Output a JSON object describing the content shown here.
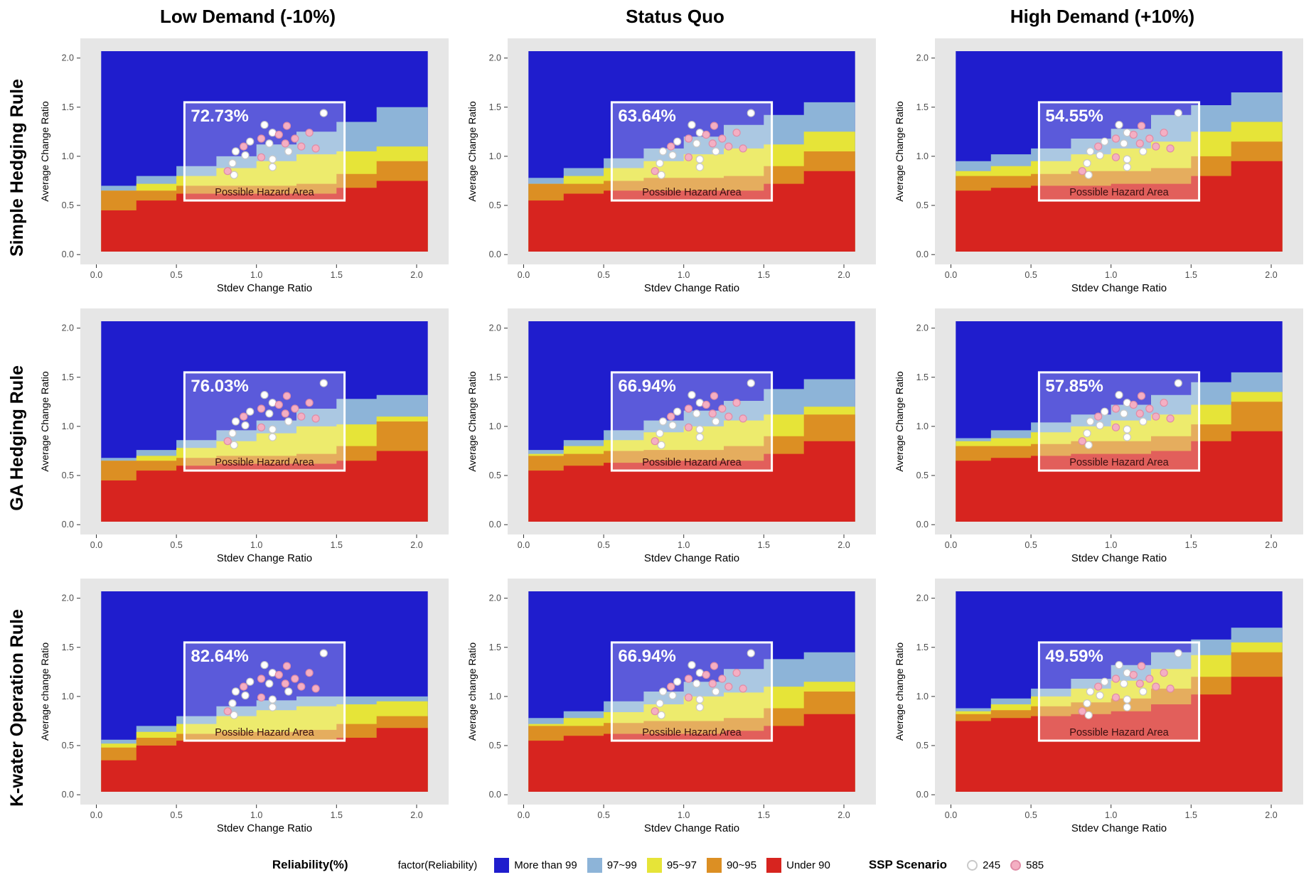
{
  "layout": {
    "col_titles": [
      "Low Demand (-10%)",
      "Status Quo",
      "High Demand (+10%)"
    ],
    "row_titles": [
      "Simple Hedging Rule",
      "GA Hedging Rule",
      "K-water Operation Rule"
    ]
  },
  "axes": {
    "xlabel": "Stdev Change Ratio",
    "ylabels": [
      "Average Change Ratio",
      "Average Change Ratio",
      "Average change Ratio"
    ],
    "tick_values": [
      0.0,
      0.5,
      1.0,
      1.5,
      2.0
    ],
    "domain": [
      -0.1,
      2.2
    ]
  },
  "colors": {
    "blue": "#1f1dcd",
    "lightblue": "#8db4d8",
    "yellow": "#e6e438",
    "orange": "#dc8f23",
    "red": "#d7241f",
    "panel_bg": "#e6e6e6",
    "ssp245": "#ffffff",
    "ssp245_stroke": "#c9c9c9",
    "ssp585": "#f4afc3",
    "ssp585_stroke": "#e08ca6",
    "hazard_text": "#3a1010",
    "overlay": "rgba(255,255,255,0.27)",
    "tick_text": "#4d4d4d",
    "tick_mark": "#333333"
  },
  "legend": {
    "title": "Reliability(%)",
    "factor_label": "factor(Reliability)",
    "classes": [
      {
        "label": "More than 99",
        "color_key": "blue"
      },
      {
        "label": "97~99",
        "color_key": "lightblue"
      },
      {
        "label": "95~97",
        "color_key": "yellow"
      },
      {
        "label": "90~95",
        "color_key": "orange"
      },
      {
        "label": "Under 90",
        "color_key": "red"
      }
    ],
    "ssp_title": "SSP Scenario",
    "ssp": [
      {
        "label": "245",
        "color_key": "ssp245"
      },
      {
        "label": "585",
        "color_key": "ssp585"
      }
    ]
  },
  "chart_data": {
    "type": "heatmap",
    "description": "Reliability class maps (Average Change Ratio vs Stdev Change Ratio) for 3 operation rules under 3 demand scenarios; white box marks Possible Hazard Area with % of scenarios above 99% reliability; dots are SSP245/SSP585 climate scenarios.",
    "band_x": [
      0.03,
      0.25,
      0.5,
      0.75,
      1.0,
      1.25,
      1.5,
      1.75,
      2.07
    ],
    "fill_range": [
      0.03,
      2.07
    ],
    "hazard_box": {
      "x0": 0.55,
      "y0": 0.55,
      "x1": 1.55,
      "y1": 1.55
    },
    "hazard_label": "Possible Hazard Area",
    "panels": [
      {
        "row": "Simple Hedging Rule",
        "col": "Low Demand (-10%)",
        "label": "72.73%",
        "bands": {
          "red": [
            0.45,
            0.55,
            0.62,
            0.62,
            0.62,
            0.62,
            0.68,
            0.75
          ],
          "orange": [
            0.65,
            0.65,
            0.7,
            0.7,
            0.7,
            0.72,
            0.82,
            0.95
          ],
          "yellow": [
            0.65,
            0.72,
            0.8,
            0.88,
            0.95,
            1.02,
            1.05,
            1.1
          ],
          "lightblue": [
            0.7,
            0.8,
            0.9,
            1.0,
            1.12,
            1.25,
            1.35,
            1.5
          ]
        }
      },
      {
        "row": "Simple Hedging Rule",
        "col": "Status Quo",
        "label": "63.64%",
        "bands": {
          "red": [
            0.55,
            0.62,
            0.65,
            0.65,
            0.65,
            0.65,
            0.72,
            0.85
          ],
          "orange": [
            0.72,
            0.72,
            0.75,
            0.78,
            0.78,
            0.8,
            0.9,
            1.05
          ],
          "yellow": [
            0.72,
            0.8,
            0.88,
            0.95,
            1.02,
            1.08,
            1.12,
            1.25
          ],
          "lightblue": [
            0.78,
            0.88,
            0.98,
            1.08,
            1.2,
            1.32,
            1.42,
            1.55
          ]
        }
      },
      {
        "row": "Simple Hedging Rule",
        "col": "High Demand (+10%)",
        "label": "54.55%",
        "bands": {
          "red": [
            0.65,
            0.68,
            0.7,
            0.7,
            0.72,
            0.72,
            0.8,
            0.95
          ],
          "orange": [
            0.8,
            0.8,
            0.82,
            0.85,
            0.85,
            0.88,
            1.0,
            1.15
          ],
          "yellow": [
            0.85,
            0.9,
            0.95,
            1.02,
            1.08,
            1.15,
            1.25,
            1.35
          ],
          "lightblue": [
            0.95,
            1.02,
            1.08,
            1.18,
            1.28,
            1.42,
            1.52,
            1.65
          ]
        }
      },
      {
        "row": "GA Hedging Rule",
        "col": "Low Demand (-10%)",
        "label": "76.03%",
        "bands": {
          "red": [
            0.45,
            0.55,
            0.6,
            0.62,
            0.62,
            0.62,
            0.65,
            0.75
          ],
          "orange": [
            0.65,
            0.65,
            0.68,
            0.7,
            0.7,
            0.72,
            0.8,
            1.05
          ],
          "yellow": [
            0.65,
            0.7,
            0.78,
            0.85,
            0.93,
            1.0,
            1.02,
            1.1
          ],
          "lightblue": [
            0.68,
            0.76,
            0.86,
            0.96,
            1.06,
            1.18,
            1.28,
            1.32
          ]
        }
      },
      {
        "row": "GA Hedging Rule",
        "col": "Status Quo",
        "label": "66.94%",
        "bands": {
          "red": [
            0.55,
            0.6,
            0.63,
            0.65,
            0.65,
            0.65,
            0.72,
            0.85
          ],
          "orange": [
            0.7,
            0.72,
            0.75,
            0.76,
            0.76,
            0.8,
            0.9,
            1.12
          ],
          "yellow": [
            0.72,
            0.8,
            0.86,
            0.94,
            1.0,
            1.06,
            1.12,
            1.2
          ],
          "lightblue": [
            0.76,
            0.86,
            0.96,
            1.06,
            1.16,
            1.26,
            1.38,
            1.48
          ]
        }
      },
      {
        "row": "GA Hedging Rule",
        "col": "High Demand (+10%)",
        "label": "57.85%",
        "bands": {
          "red": [
            0.65,
            0.68,
            0.7,
            0.72,
            0.72,
            0.75,
            0.85,
            0.95
          ],
          "orange": [
            0.8,
            0.8,
            0.82,
            0.85,
            0.85,
            0.9,
            1.02,
            1.25
          ],
          "yellow": [
            0.85,
            0.88,
            0.94,
            1.0,
            1.06,
            1.12,
            1.22,
            1.35
          ],
          "lightblue": [
            0.88,
            0.96,
            1.04,
            1.12,
            1.22,
            1.32,
            1.45,
            1.55
          ]
        }
      },
      {
        "row": "K-water Operation Rule",
        "col": "Low Demand (-10%)",
        "label": "82.64%",
        "bands": {
          "red": [
            0.35,
            0.5,
            0.55,
            0.55,
            0.55,
            0.55,
            0.58,
            0.68
          ],
          "orange": [
            0.48,
            0.58,
            0.62,
            0.64,
            0.64,
            0.66,
            0.72,
            0.8
          ],
          "yellow": [
            0.52,
            0.64,
            0.72,
            0.8,
            0.86,
            0.9,
            0.92,
            0.95
          ],
          "lightblue": [
            0.56,
            0.7,
            0.8,
            0.9,
            0.96,
            1.0,
            1.0,
            1.0
          ]
        }
      },
      {
        "row": "K-water Operation Rule",
        "col": "Status Quo",
        "label": "66.94%",
        "bands": {
          "red": [
            0.55,
            0.6,
            0.62,
            0.62,
            0.62,
            0.65,
            0.7,
            0.82
          ],
          "orange": [
            0.7,
            0.7,
            0.73,
            0.75,
            0.75,
            0.78,
            0.88,
            1.05
          ],
          "yellow": [
            0.72,
            0.78,
            0.84,
            0.92,
            1.0,
            1.04,
            1.1,
            1.15
          ],
          "lightblue": [
            0.78,
            0.85,
            0.95,
            1.05,
            1.15,
            1.28,
            1.38,
            1.45
          ]
        }
      },
      {
        "row": "K-water Operation Rule",
        "col": "High Demand (+10%)",
        "label": "49.59%",
        "bands": {
          "red": [
            0.75,
            0.78,
            0.8,
            0.82,
            0.85,
            0.92,
            1.02,
            1.2
          ],
          "orange": [
            0.82,
            0.86,
            0.9,
            0.94,
            0.98,
            1.08,
            1.2,
            1.45
          ],
          "yellow": [
            0.85,
            0.92,
            1.0,
            1.08,
            1.16,
            1.28,
            1.42,
            1.55
          ],
          "lightblue": [
            0.88,
            0.98,
            1.08,
            1.18,
            1.32,
            1.45,
            1.58,
            1.7
          ]
        }
      }
    ],
    "points": {
      "ssp245": [
        [
          1.42,
          1.44
        ],
        [
          1.1,
          1.24
        ],
        [
          0.96,
          1.15
        ],
        [
          1.08,
          1.13
        ],
        [
          0.87,
          1.05
        ],
        [
          0.93,
          1.01
        ],
        [
          1.1,
          0.97
        ],
        [
          1.2,
          1.05
        ],
        [
          0.85,
          0.93
        ],
        [
          0.86,
          0.81
        ],
        [
          1.1,
          0.89
        ],
        [
          1.05,
          1.32
        ]
      ],
      "ssp585": [
        [
          1.19,
          1.31
        ],
        [
          1.14,
          1.22
        ],
        [
          1.03,
          1.18
        ],
        [
          1.18,
          1.13
        ],
        [
          1.03,
          0.99
        ],
        [
          1.28,
          1.1
        ],
        [
          0.82,
          0.85
        ],
        [
          1.24,
          1.18
        ],
        [
          1.33,
          1.24
        ],
        [
          0.92,
          1.1
        ],
        [
          1.37,
          1.08
        ]
      ]
    }
  }
}
